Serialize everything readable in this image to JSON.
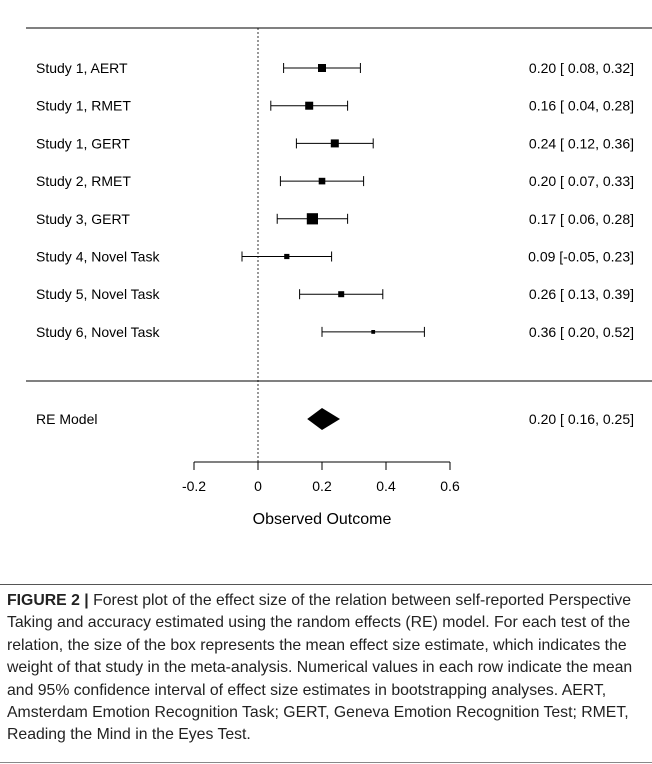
{
  "chart_data": {
    "type": "forest",
    "xlabel": "Observed Outcome",
    "xticks": [
      "-0.2",
      "0",
      "0.2",
      "0.4",
      "0.6"
    ],
    "xlim": [
      -0.2,
      0.6
    ],
    "reference_line": 0,
    "studies": [
      {
        "label": "Study 1, AERT",
        "estimate": 0.2,
        "ci": [
          0.08,
          0.32
        ],
        "text": "0.20 [ 0.08, 0.32]",
        "weight": 3
      },
      {
        "label": "Study 1, RMET",
        "estimate": 0.16,
        "ci": [
          0.04,
          0.28
        ],
        "text": "0.16 [ 0.04, 0.28]",
        "weight": 3
      },
      {
        "label": "Study 1, GERT",
        "estimate": 0.24,
        "ci": [
          0.12,
          0.36
        ],
        "text": "0.24 [ 0.12, 0.36]",
        "weight": 3
      },
      {
        "label": "Study 2, RMET",
        "estimate": 0.2,
        "ci": [
          0.07,
          0.33
        ],
        "text": "0.20 [ 0.07, 0.33]",
        "weight": 2.3
      },
      {
        "label": "Study 3, GERT",
        "estimate": 0.17,
        "ci": [
          0.06,
          0.28
        ],
        "text": "0.17 [ 0.06, 0.28]",
        "weight": 4.6
      },
      {
        "label": "Study 4, Novel Task",
        "estimate": 0.09,
        "ci": [
          -0.05,
          0.23
        ],
        "text": "0.09 [-0.05, 0.23]",
        "weight": 1.6
      },
      {
        "label": "Study 5, Novel Task",
        "estimate": 0.26,
        "ci": [
          0.13,
          0.39
        ],
        "text": "0.26 [ 0.13, 0.39]",
        "weight": 2
      },
      {
        "label": "Study 6, Novel Task",
        "estimate": 0.36,
        "ci": [
          0.2,
          0.52
        ],
        "text": "0.36 [ 0.20, 0.52]",
        "weight": 0.9
      }
    ],
    "summary": {
      "label": "RE Model",
      "estimate": 0.2,
      "ci": [
        0.16,
        0.25
      ],
      "text": "0.20 [ 0.16, 0.25]"
    }
  },
  "caption": {
    "label": "FIGURE 2 |",
    "text": "Forest plot of the effect size of the relation between self-reported Perspective Taking and accuracy estimated using the random effects (RE) model. For each test of the relation, the size of the box represents the mean effect size estimate, which indicates the weight of that study in the meta-analysis. Numerical values in each row indicate the mean and 95% confidence interval of effect size estimates in bootstrapping analyses. AERT, Amsterdam Emotion Recognition Task; GERT, Geneva Emotion Recognition Test; RMET, Reading the Mind in the Eyes Test."
  }
}
